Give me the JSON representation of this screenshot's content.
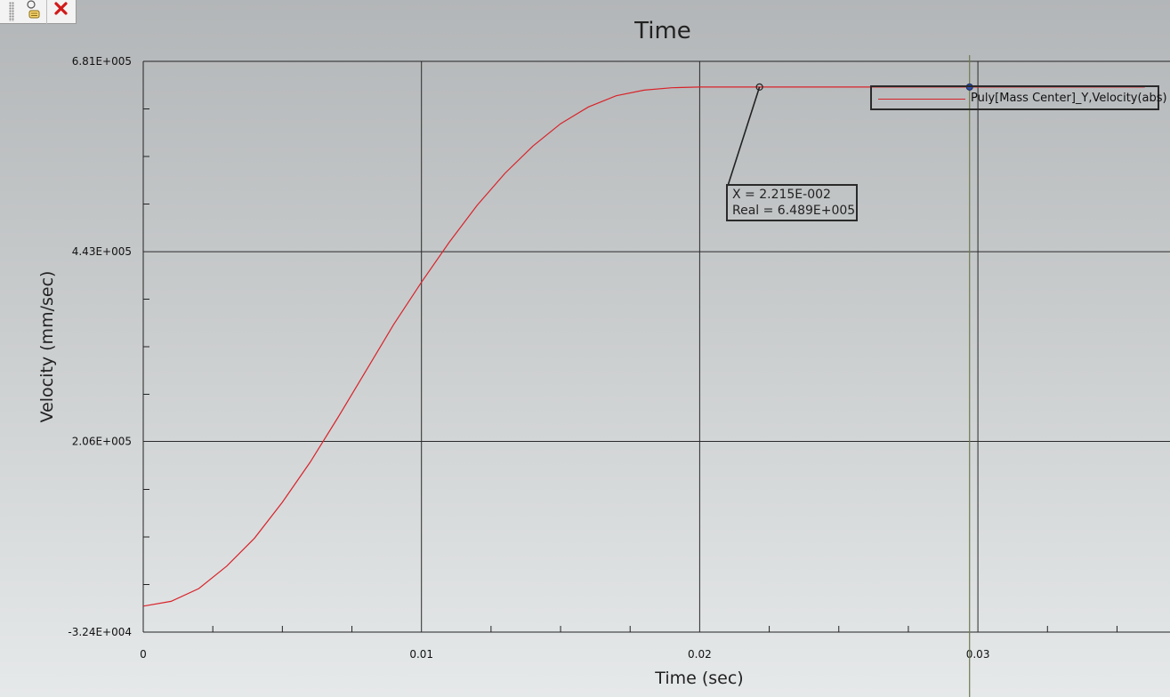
{
  "toolbar": {
    "icons": [
      "marker-tool-icon",
      "close-icon"
    ],
    "close_color": "#d11a1a"
  },
  "chart_data": {
    "type": "line",
    "title": "Time",
    "xlabel": "Time (sec)",
    "ylabel": "Velocity (mm/sec)",
    "xlim": [
      0,
      0.036
    ],
    "ylim": [
      -32400,
      681000
    ],
    "x_ticks": [
      0,
      0.01,
      0.02,
      0.03
    ],
    "x_tick_labels": [
      "0",
      "0.01",
      "0.02",
      "0.03"
    ],
    "y_ticks": [
      -32400,
      206000,
      443000,
      681000
    ],
    "y_tick_labels": [
      "-3.24E+004",
      "2.06E+005",
      "4.43E+005",
      "6.81E+005"
    ],
    "grid": true,
    "legend_position": "top-right",
    "series": [
      {
        "name": "Puly[Mass Center]_Y,Velocity(abs)",
        "color": "#d8232a",
        "x": [
          0,
          0.001,
          0.002,
          0.003,
          0.004,
          0.005,
          0.006,
          0.007,
          0.008,
          0.009,
          0.01,
          0.011,
          0.012,
          0.013,
          0.014,
          0.015,
          0.016,
          0.017,
          0.018,
          0.019,
          0.02,
          0.022,
          0.024,
          0.026,
          0.028,
          0.03,
          0.032,
          0.034,
          0.036
        ],
        "y": [
          0,
          6000,
          22000,
          50000,
          85000,
          130000,
          180000,
          236000,
          294000,
          352000,
          405000,
          455000,
          501000,
          541000,
          575000,
          603000,
          624000,
          638000,
          645000,
          648000,
          648900,
          648900,
          648900,
          648900,
          648900,
          648900,
          648900,
          648900,
          648900
        ]
      }
    ],
    "annotations": [
      {
        "x_text": "X     = 2.215E-002",
        "real_text": "Real = 6.489E+005",
        "x": 0.02215,
        "y": 648900
      }
    ],
    "cursor": {
      "x": 0.0297
    }
  }
}
